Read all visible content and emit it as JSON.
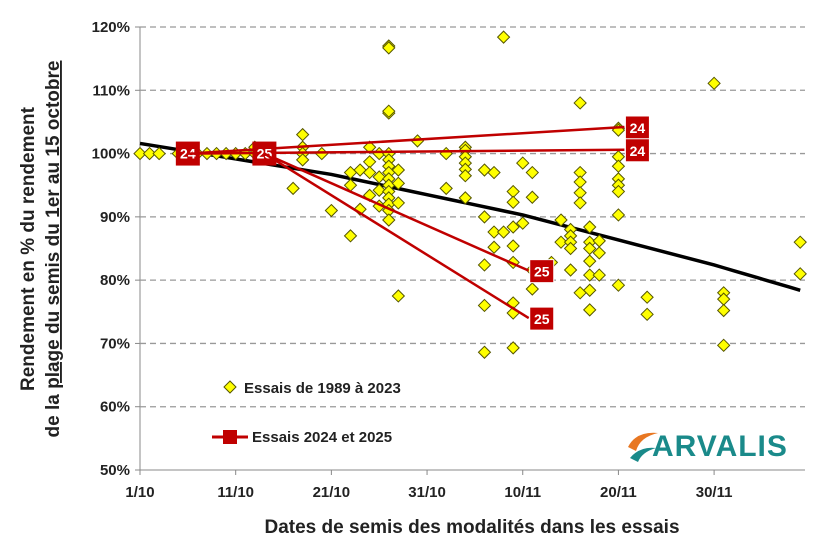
{
  "chart_data": {
    "type": "scatter",
    "xlabel": "Dates de semis des modalités dans les essais",
    "ylabel_line1": "Rendement en % du rendement",
    "ylabel_line2_prefix": "de la ",
    "ylabel_line2_underlined": "plage du semis du 1er au 15 octobre",
    "xlim": [
      "1/10",
      "9/12"
    ],
    "ylim": [
      50,
      120
    ],
    "x_ticks": [
      "1/10",
      "11/10",
      "21/10",
      "31/10",
      "10/11",
      "20/11",
      "30/11"
    ],
    "y_ticks": [
      "50%",
      "60%",
      "70%",
      "80%",
      "90%",
      "100%",
      "110%",
      "120%"
    ],
    "y_tick_values": [
      50,
      60,
      70,
      80,
      90,
      100,
      110,
      120
    ],
    "grid": "horizontal dashed",
    "legend_placement": "bottom-left",
    "colors": {
      "points": "#ffff00",
      "point_edge": "#555500",
      "red": "#c00000",
      "trend": "#000000"
    },
    "series": [
      {
        "name": "Essais de 1989 à 2023",
        "marker": "diamond",
        "points": [
          {
            "date": "1/10",
            "values": [
              100
            ]
          },
          {
            "date": "2/10",
            "values": [
              100
            ]
          },
          {
            "date": "3/10",
            "values": [
              100
            ]
          },
          {
            "date": "5/10",
            "values": [
              100
            ]
          },
          {
            "date": "6/10",
            "values": [
              100
            ]
          },
          {
            "date": "7/10",
            "values": [
              100
            ]
          },
          {
            "date": "8/10",
            "values": [
              100
            ]
          },
          {
            "date": "9/10",
            "values": [
              100
            ]
          },
          {
            "date": "10/10",
            "values": [
              100
            ]
          },
          {
            "date": "11/10",
            "values": [
              100
            ]
          },
          {
            "date": "12/10",
            "values": [
              100
            ]
          },
          {
            "date": "13/10",
            "values": [
              101,
              100
            ]
          },
          {
            "date": "14/10",
            "values": [
              100
            ]
          },
          {
            "date": "17/10",
            "values": [
              94.5
            ]
          },
          {
            "date": "18/10",
            "values": [
              103,
              101,
              100,
              99
            ]
          },
          {
            "date": "20/10",
            "values": [
              100
            ]
          },
          {
            "date": "21/10",
            "values": [
              91
            ]
          },
          {
            "date": "23/10",
            "values": [
              87,
              95,
              97
            ]
          },
          {
            "date": "24/10",
            "values": [
              97.4,
              91.2
            ]
          },
          {
            "date": "25/10",
            "values": [
              101,
              98.7,
              97,
              93.4
            ]
          },
          {
            "date": "26/10",
            "values": [
              100,
              96.3,
              94.2,
              91.7
            ]
          },
          {
            "date": "27/10",
            "values": [
              117,
              116.7,
              106.4,
              106.7,
              100,
              99,
              98,
              97,
              96,
              95,
              94,
              93,
              92,
              91,
              89.5
            ]
          },
          {
            "date": "28/10",
            "values": [
              97.4,
              95.3,
              92.2,
              77.5
            ]
          },
          {
            "date": "30/10",
            "values": [
              102
            ]
          },
          {
            "date": "2/11",
            "values": [
              100,
              94.5
            ]
          },
          {
            "date": "4/11",
            "values": [
              101,
              100.5,
              99.5,
              98.5,
              97.5,
              96.5,
              93
            ]
          },
          {
            "date": "6/11",
            "values": [
              97.4,
              90,
              82.4,
              76,
              68.6
            ]
          },
          {
            "date": "7/11",
            "values": [
              97,
              87.6,
              85.2
            ]
          },
          {
            "date": "8/11",
            "values": [
              118.4,
              87.6
            ]
          },
          {
            "date": "9/11",
            "values": [
              94,
              92.3,
              88.4,
              85.4,
              82.8,
              76.4,
              74.8,
              69.3
            ]
          },
          {
            "date": "10/11",
            "values": [
              98.5,
              89
            ]
          },
          {
            "date": "11/11",
            "values": [
              97,
              93.1,
              81.6,
              78.6
            ]
          },
          {
            "date": "13/11",
            "values": [
              82.8
            ]
          },
          {
            "date": "14/11",
            "values": [
              89.5,
              86
            ]
          },
          {
            "date": "15/11",
            "values": [
              88,
              87,
              86,
              85,
              81.6
            ]
          },
          {
            "date": "16/11",
            "values": [
              108,
              97,
              95.5,
              93.8,
              92.2,
              78
            ]
          },
          {
            "date": "17/11",
            "values": [
              88.4,
              86,
              85,
              83,
              80.8,
              78.4,
              75.3
            ]
          },
          {
            "date": "18/11",
            "values": [
              86.2,
              84.3,
              80.8
            ]
          },
          {
            "date": "20/11",
            "values": [
              104,
              103.7,
              99.5,
              98,
              96,
              95,
              94,
              90.3,
              79.2
            ]
          },
          {
            "date": "23/11",
            "values": [
              77.3,
              74.6
            ]
          },
          {
            "date": "30/11",
            "values": [
              111.1
            ]
          },
          {
            "date": "1/12",
            "values": [
              78,
              77,
              75.2,
              69.7
            ]
          },
          {
            "date": "9/12",
            "values": [
              86,
              81
            ]
          }
        ]
      },
      {
        "name": "Essais 2024 et 2025",
        "marker": "square",
        "lines": [
          {
            "from": [
              "6/10",
              100
            ],
            "to": [
              "20/11",
              104.2
            ],
            "start_label": "24",
            "end_label": "24"
          },
          {
            "from": [
              "6/10",
              100
            ],
            "to": [
              "20/11",
              100.6
            ],
            "start_label": "24",
            "end_label": "24"
          },
          {
            "from": [
              "14/10",
              100
            ],
            "to": [
              "10/11",
              81.5
            ],
            "start_label": "25",
            "end_label": "25"
          },
          {
            "from": [
              "14/10",
              100
            ],
            "to": [
              "10/11",
              74
            ],
            "start_label": "25",
            "end_label": "25"
          }
        ]
      }
    ],
    "trend": [
      [
        "1/10",
        101.6
      ],
      [
        "21/10",
        96.7
      ],
      [
        "10/11",
        90.3
      ],
      [
        "30/11",
        82.4
      ],
      [
        "9/12",
        78.4
      ]
    ]
  },
  "logo": {
    "text": "ARVALIS",
    "colors": [
      "#1a8a8a",
      "#e87722"
    ]
  }
}
